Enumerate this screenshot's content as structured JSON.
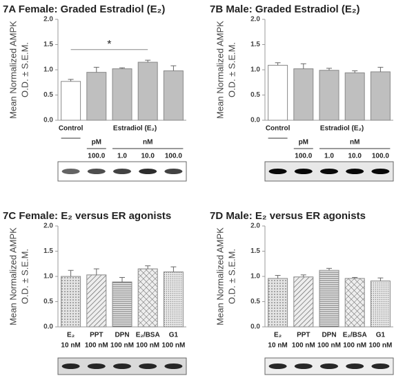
{
  "chart_data": [
    {
      "type": "bar",
      "title": "7A  Female:  Graded Estradiol (E₂)",
      "ylabel": [
        "Mean Normalized AMPK",
        "O.D. ± S.E.M."
      ],
      "groups": [
        "Control",
        "Estradiol (E₂)"
      ],
      "units": [
        "pM",
        "nM"
      ],
      "categories": [
        null,
        "100.0",
        "1.0",
        "10.0",
        "100.0"
      ],
      "values": [
        0.77,
        0.95,
        1.02,
        1.15,
        0.98
      ],
      "errors": [
        0.04,
        0.1,
        0.02,
        0.04,
        0.1
      ],
      "colors": [
        "#ffffff",
        "#bfbfbf",
        "#bfbfbf",
        "#bfbfbf",
        "#bfbfbf"
      ],
      "annotation": "*",
      "ylim": [
        0,
        2
      ],
      "yticks": [
        {
          "value": 0,
          "label": "0.0"
        },
        {
          "value": 0.5,
          "label": "0.5"
        },
        {
          "value": 1,
          "label": "1.0"
        },
        {
          "value": 1.5,
          "label": "1.5"
        },
        {
          "value": 2,
          "label": "2.0"
        }
      ]
    },
    {
      "type": "bar",
      "title": "7B  Male:  Graded Estradiol (E₂)",
      "ylabel": [
        "Mean Normalized AMPK",
        "O.D. ± S.E.M."
      ],
      "groups": [
        "Control",
        "Estradiol (E₂)"
      ],
      "units": [
        "pM",
        "nM"
      ],
      "categories": [
        null,
        "100.0",
        "1.0",
        "10.0",
        "100.0"
      ],
      "values": [
        1.09,
        1.02,
        0.99,
        0.94,
        0.96
      ],
      "errors": [
        0.05,
        0.1,
        0.04,
        0.04,
        0.09
      ],
      "colors": [
        "#ffffff",
        "#bfbfbf",
        "#bfbfbf",
        "#bfbfbf",
        "#bfbfbf"
      ],
      "ylim": [
        0,
        2
      ],
      "yticks": [
        {
          "value": 0,
          "label": "0.0"
        },
        {
          "value": 0.5,
          "label": "0.5"
        },
        {
          "value": 1,
          "label": "1.0"
        },
        {
          "value": 1.5,
          "label": "1.5"
        },
        {
          "value": 2,
          "label": "2.0"
        }
      ]
    },
    {
      "type": "bar",
      "title": "7C   Female:  E₂ versus ER agonists",
      "ylabel": [
        "Mean Normalized AMPK",
        "O.D. ± S.E.M."
      ],
      "categories": [
        "E₂",
        "PPT",
        "DPN",
        "E₂/BSA",
        "G1"
      ],
      "doses": [
        "10 nM",
        "100 nM",
        "100 nM",
        "100 nM",
        "100 nM"
      ],
      "values": [
        1.0,
        1.03,
        0.89,
        1.15,
        1.09
      ],
      "errors": [
        0.12,
        0.12,
        0.09,
        0.06,
        0.1
      ],
      "patterns": [
        "dots",
        "diagonal",
        "horizontal",
        "crosshatch",
        "fine-dots"
      ],
      "ylim": [
        0,
        2
      ],
      "yticks": [
        {
          "value": 0,
          "label": "0.0"
        },
        {
          "value": 0.5,
          "label": "0.5"
        },
        {
          "value": 1,
          "label": "1.0"
        },
        {
          "value": 1.5,
          "label": "1.5"
        },
        {
          "value": 2,
          "label": "2.0"
        }
      ]
    },
    {
      "type": "bar",
      "title": "7D   Male:  E₂ versus ER agonists",
      "ylabel": [
        "Mean Normalized AMPK",
        "O.D. ± S.E.M."
      ],
      "categories": [
        "E₂",
        "PPT",
        "DPN",
        "E₂/BSA",
        "G1"
      ],
      "doses": [
        "10 nM",
        "100 nM",
        "100 nM",
        "100 nM",
        "100 nM"
      ],
      "values": [
        0.96,
        0.99,
        1.12,
        0.96,
        0.91
      ],
      "errors": [
        0.06,
        0.04,
        0.04,
        0.02,
        0.06
      ],
      "patterns": [
        "dots",
        "diagonal",
        "horizontal",
        "crosshatch",
        "fine-dots"
      ],
      "ylim": [
        0,
        2
      ],
      "yticks": [
        {
          "value": 0,
          "label": "0.0"
        },
        {
          "value": 0.5,
          "label": "0.5"
        },
        {
          "value": 1,
          "label": "1.0"
        },
        {
          "value": 1.5,
          "label": "1.5"
        },
        {
          "value": 2,
          "label": "2.0"
        }
      ]
    }
  ]
}
